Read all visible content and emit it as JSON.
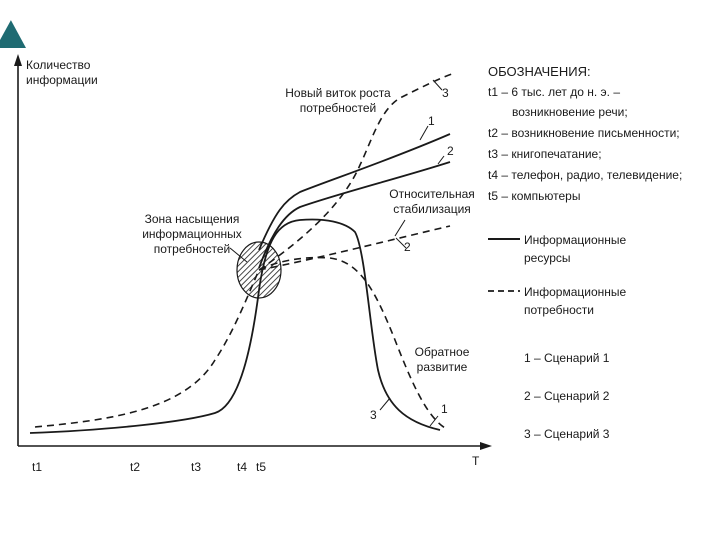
{
  "colors": {
    "corner_accent": "#1f6b72",
    "ink": "#1a1a1a"
  },
  "icons": {
    "corner": "corner-triangle-icon"
  },
  "chart_data": {
    "type": "line",
    "title": "",
    "ylabel": "Количество информации",
    "xlabel": "T",
    "x_ticks": [
      "t1",
      "t2",
      "t3",
      "t4",
      "t5"
    ],
    "annotations": {
      "new_round": "Новый виток роста потребностей",
      "saturation_zone": "Зона насыщения информационных потребностей",
      "stabilization": "Относительная стабилизация",
      "reverse": "Обратное развитие"
    },
    "curve_numbers": {
      "one": "1",
      "two": "2",
      "three": "3"
    },
    "series": [
      {
        "name": "Информационные ресурсы",
        "style": "solid"
      },
      {
        "name": "Информационные потребности",
        "style": "dashed"
      }
    ]
  },
  "legend": {
    "header": "ОБОЗНАЧЕНИЯ:",
    "t1_line1": "t1 – 6 тыс. лет до н. э. –",
    "t1_line2": "возникновение речи;",
    "t2": "t2 – возникновение письменности;",
    "t3": "t3 – книгопечатание;",
    "t4": "t4 – телефон, радио, телевидение;",
    "t5": "t5 – компьютеры",
    "resources_line1": "Информационные",
    "resources_line2": "ресурсы",
    "needs_line1": "Информационные",
    "needs_line2": "потребности",
    "scenario1": "1 – Сценарий 1",
    "scenario2": "2 – Сценарий 2",
    "scenario3": "3 – Сценарий 3"
  }
}
